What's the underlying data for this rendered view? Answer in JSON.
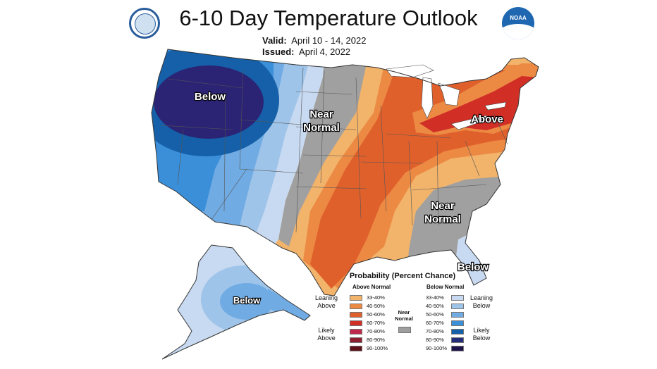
{
  "header": {
    "title": "6-10 Day Temperature Outlook",
    "valid_label": "Valid:",
    "valid_value": "April 10 - 14, 2022",
    "issued_label": "Issued:",
    "issued_value": "April 4, 2022"
  },
  "logos": {
    "left": "commerce-department-seal",
    "right_text": "NOAA"
  },
  "map_labels": {
    "west_below": "Below",
    "central_near_1": "Near",
    "central_near_2": "Normal",
    "ne_above": "Above",
    "se_near_1": "Near",
    "se_near_2": "Normal",
    "florida_below": "Below",
    "alaska_below": "Below"
  },
  "legend": {
    "title": "Probability (Percent Chance)",
    "above_head": "Above Normal",
    "below_head": "Below Normal",
    "leaning_above_1": "Leaning",
    "leaning_above_2": "Above",
    "likely_above_1": "Likely",
    "likely_above_2": "Above",
    "leaning_below_1": "Leaning",
    "leaning_below_2": "Below",
    "likely_below_1": "Likely",
    "likely_below_2": "Below",
    "near_1": "Near",
    "near_2": "Normal",
    "near_color": "#9e9e9e",
    "above": [
      {
        "label": "33-40%",
        "color": "#f2b36b"
      },
      {
        "label": "40-50%",
        "color": "#ec8a44"
      },
      {
        "label": "50-60%",
        "color": "#e0602c"
      },
      {
        "label": "60-70%",
        "color": "#d12f26"
      },
      {
        "label": "70-80%",
        "color": "#bf2a4c"
      },
      {
        "label": "80-90%",
        "color": "#8e1f31"
      },
      {
        "label": "90-100%",
        "color": "#5c1218"
      }
    ],
    "below": [
      {
        "label": "33-40%",
        "color": "#c8daf1"
      },
      {
        "label": "40-50%",
        "color": "#9ec4ea"
      },
      {
        "label": "50-60%",
        "color": "#71abe3"
      },
      {
        "label": "60-70%",
        "color": "#3a8fd8"
      },
      {
        "label": "70-80%",
        "color": "#1560a8"
      },
      {
        "label": "80-90%",
        "color": "#232d7a"
      },
      {
        "label": "90-100%",
        "color": "#1e1449"
      }
    ]
  }
}
